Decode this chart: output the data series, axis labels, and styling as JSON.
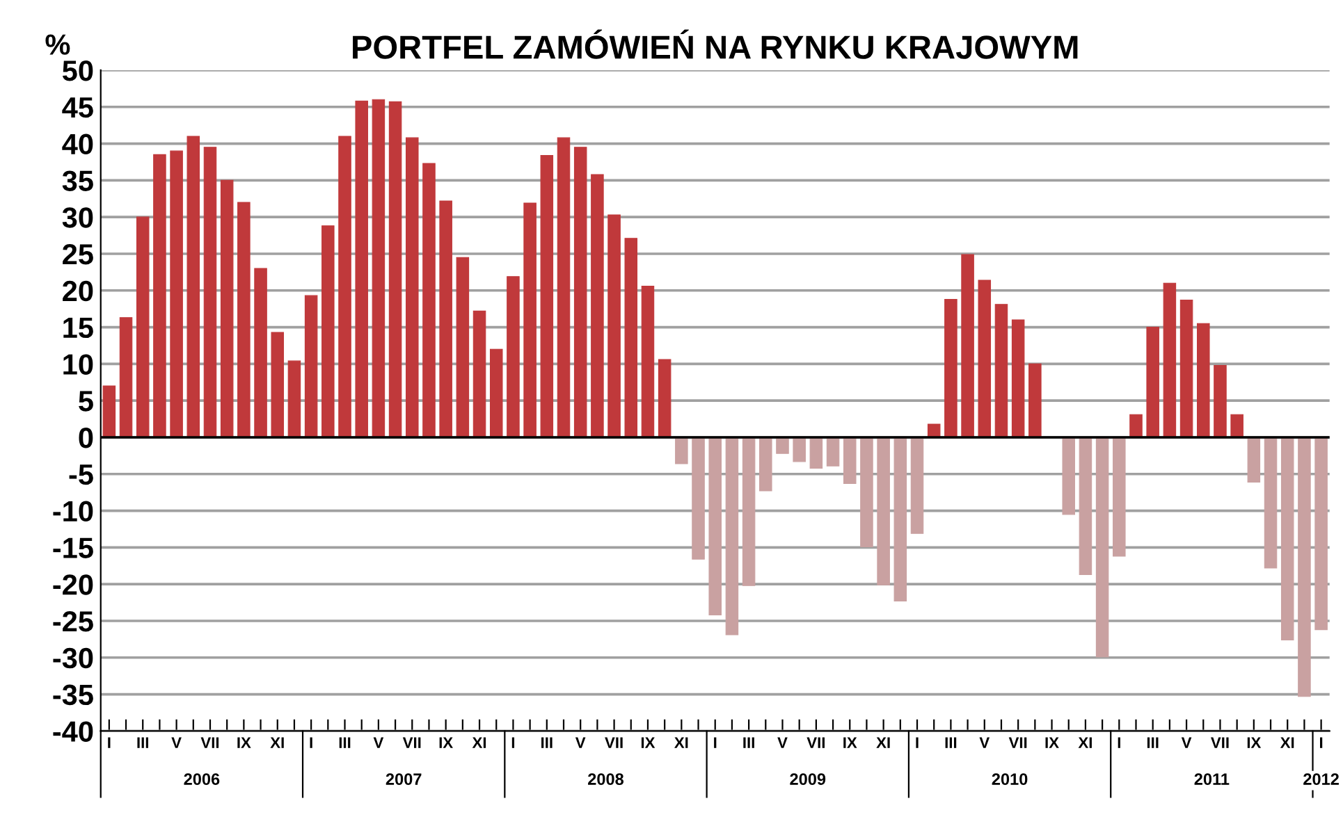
{
  "chart_data": {
    "type": "bar",
    "title": "PORTFEL ZAMÓWIEŃ NA RYNKU KRAJOWYM",
    "ylabel": "%",
    "categories": [
      "I",
      null,
      "III",
      null,
      "V",
      null,
      "VII",
      null,
      "IX",
      null,
      "XI",
      null,
      "I",
      null,
      "III",
      null,
      "V",
      null,
      "VII",
      null,
      "IX",
      null,
      "XI",
      null,
      "I",
      null,
      "III",
      null,
      "V",
      null,
      "VII",
      null,
      "IX",
      null,
      "XI",
      null,
      "I",
      null,
      "III",
      null,
      "V",
      null,
      "VII",
      null,
      "IX",
      null,
      "XI",
      null,
      "I",
      null,
      "III",
      null,
      "V",
      null,
      "VII",
      null,
      "IX",
      null,
      "XI",
      null,
      "I",
      null,
      "III",
      null,
      "V",
      null,
      "VII",
      null,
      "IX",
      null,
      "XI",
      null,
      "I"
    ],
    "values": [
      7,
      16.3,
      30,
      38.5,
      39,
      41,
      39.5,
      35,
      32,
      23,
      14.3,
      10.4,
      19.3,
      28.8,
      41,
      45.8,
      46,
      45.7,
      40.8,
      37.3,
      32.2,
      24.5,
      17.2,
      12,
      21.9,
      31.9,
      38.4,
      40.8,
      39.5,
      35.8,
      30.3,
      27.1,
      20.6,
      10.6,
      -3.6,
      -16.6,
      -24.2,
      -26.9,
      -20.2,
      -7.3,
      -2.2,
      -3.3,
      -4.2,
      -3.9,
      -6.3,
      -14.9,
      -20.1,
      -22.3,
      -13.1,
      1.8,
      18.8,
      24.9,
      21.4,
      18.1,
      16.0,
      10.0,
      0,
      -10.5,
      -18.7,
      -29.9,
      -16.2,
      3.1,
      15.0,
      21.0,
      18.7,
      15.5,
      9.8,
      3.1,
      -6.1,
      -17.8,
      -27.6,
      -35.3,
      -26.2
    ],
    "colors": [
      "#c0393b",
      "#c0393b",
      "#c0393b",
      "#c0393b",
      "#c0393b",
      "#c0393b",
      "#c0393b",
      "#c0393b",
      "#c0393b",
      "#c0393b",
      "#c0393b",
      "#c0393b",
      "#c0393b",
      "#c0393b",
      "#c0393b",
      "#c0393b",
      "#c0393b",
      "#c0393b",
      "#c0393b",
      "#c0393b",
      "#c0393b",
      "#c0393b",
      "#c0393b",
      "#c0393b",
      "#c0393b",
      "#c0393b",
      "#c0393b",
      "#c0393b",
      "#c0393b",
      "#c0393b",
      "#c0393b",
      "#c0393b",
      "#c0393b",
      "#c0393b",
      "#c9a1a1",
      "#c9a1a1",
      "#c9a1a1",
      "#c9a1a1",
      "#c9a1a1",
      "#c9a1a1",
      "#c9a1a1",
      "#c9a1a1",
      "#c9a1a1",
      "#c9a1a1",
      "#c9a1a1",
      "#c9a1a1",
      "#c9a1a1",
      "#c9a1a1",
      "#c9a1a1",
      "#c0393b",
      "#c0393b",
      "#c0393b",
      "#c0393b",
      "#c0393b",
      "#c0393b",
      "#c0393b",
      "#c0393b",
      "#c9a1a1",
      "#c9a1a1",
      "#c9a1a1",
      "#c9a1a1",
      "#c0393b",
      "#c0393b",
      "#c0393b",
      "#c0393b",
      "#c0393b",
      "#c0393b",
      "#c0393b",
      "#c9a1a1",
      "#c9a1a1",
      "#c9a1a1",
      "#c9a1a1",
      "#c9a1a1"
    ],
    "annotations": [
      "2006",
      "2007",
      "2008",
      "2009",
      "2010",
      "2011",
      "2012"
    ],
    "ylim": [
      -40,
      50
    ],
    "yticks": [
      -40,
      -35,
      -30,
      -25,
      -20,
      -15,
      -10,
      -5,
      0,
      5,
      10,
      15,
      20,
      25,
      30,
      35,
      40,
      45,
      50
    ],
    "grid": "y"
  }
}
